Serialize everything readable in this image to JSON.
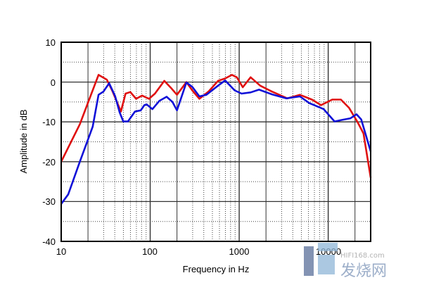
{
  "chart_data": {
    "type": "line",
    "title": "",
    "xlabel": "Frequency in Hz",
    "ylabel": "Amplitude in dB",
    "xscale": "log",
    "xlim": [
      10,
      30000
    ],
    "ylim": [
      -40,
      10
    ],
    "xticks": [
      10,
      100,
      1000,
      10000
    ],
    "xtick_labels": [
      "10",
      "100",
      "1000",
      "10000"
    ],
    "yticks": [
      10,
      0,
      -10,
      -20,
      -30,
      -40
    ],
    "ytick_labels": [
      "10",
      "0",
      "-10",
      "-20",
      "-30",
      "-40"
    ],
    "grid": true,
    "series": [
      {
        "name": "red",
        "color": "#e01010",
        "x": [
          10,
          16.2,
          26.3,
          32.6,
          37.9,
          46.9,
          52.9,
          59.8,
          69.4,
          81,
          97,
          113,
          144,
          172,
          200,
          255,
          297,
          357,
          452,
          580,
          695,
          830,
          940,
          1097,
          1344,
          1720,
          2340,
          3480,
          4800,
          6560,
          8300,
          11100,
          13900,
          17200,
          21300,
          24900,
          30000
        ],
        "y": [
          -20,
          -10.6,
          1.8,
          0.6,
          -2.4,
          -7.4,
          -2.9,
          -2.5,
          -4.2,
          -3.4,
          -4.2,
          -2.9,
          0.3,
          -1.5,
          -3.2,
          0,
          -2.1,
          -4.2,
          -2.4,
          0.3,
          0.9,
          1.8,
          1.2,
          -1.3,
          1.2,
          -0.9,
          -2.4,
          -4.1,
          -3.2,
          -4.4,
          -5.8,
          -4.4,
          -4.4,
          -6.5,
          -10,
          -12.9,
          -24
        ]
      },
      {
        "name": "blue",
        "color": "#1010d8",
        "x": [
          10,
          12,
          16.2,
          22.6,
          26.3,
          29.8,
          34.6,
          40.3,
          45.4,
          49.9,
          56.2,
          67.4,
          78.4,
          86,
          91,
          106,
          127,
          153,
          178,
          200,
          255,
          297,
          357,
          428,
          580,
          695,
          890,
          1065,
          1344,
          1670,
          2340,
          3380,
          4800,
          6150,
          8900,
          11800,
          14300,
          17800,
          20800,
          23500,
          30000
        ],
        "y": [
          -30.6,
          -28.2,
          -20,
          -11.2,
          -3.2,
          -2.4,
          -0.3,
          -3.5,
          -7.6,
          -9.9,
          -9.9,
          -7.4,
          -7.1,
          -5.8,
          -5.6,
          -6.8,
          -4.7,
          -3.7,
          -5,
          -7.1,
          -0.1,
          -1.2,
          -3.6,
          -3.2,
          -0.9,
          0.4,
          -2.1,
          -2.9,
          -2.6,
          -1.9,
          -3.1,
          -4.1,
          -3.6,
          -5.3,
          -6.8,
          -9.9,
          -9.5,
          -9.1,
          -8.1,
          -9.4,
          -17.4
        ]
      }
    ]
  },
  "watermark": {
    "site": "HIFI168.com",
    "name": "发烧网"
  }
}
